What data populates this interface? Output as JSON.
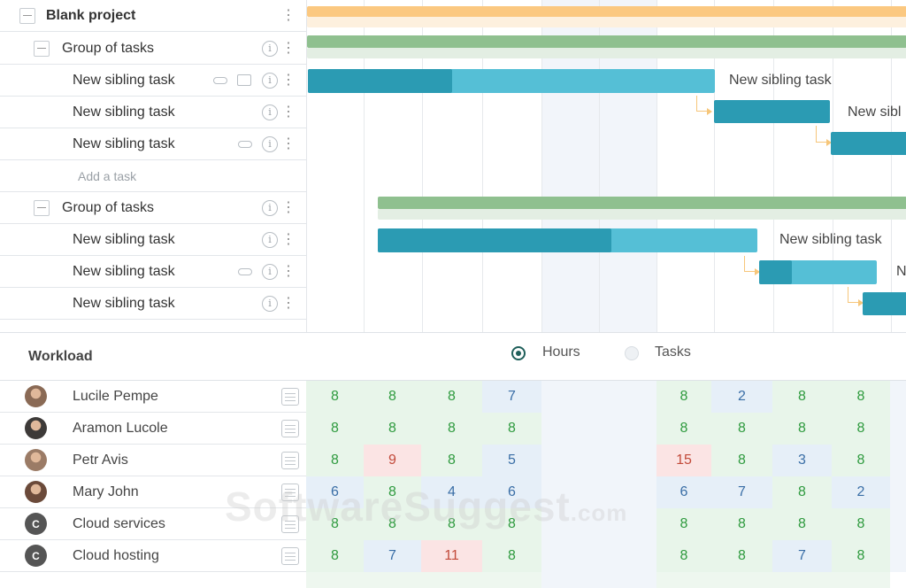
{
  "tree": {
    "project": "Blank project",
    "group1": "Group of tasks",
    "group2": "Group of tasks",
    "task_label": "New sibling task",
    "add_task": "Add a task"
  },
  "gantt": {
    "bar_labels": [
      "New sibling task",
      "New sibl",
      "New sibling task",
      "N"
    ]
  },
  "workload": {
    "title": "Workload",
    "mode_hours": "Hours",
    "mode_tasks": "Tasks",
    "selected_mode": "Hours",
    "resources": [
      {
        "name": "Lucile Pempe",
        "avatar": "photo",
        "values": [
          "8",
          "8",
          "8",
          "7",
          "",
          "",
          "8",
          "2",
          "8",
          "8"
        ]
      },
      {
        "name": "Aramon Lucole",
        "avatar": "photo",
        "values": [
          "8",
          "8",
          "8",
          "8",
          "",
          "",
          "8",
          "8",
          "8",
          "8"
        ]
      },
      {
        "name": "Petr Avis",
        "avatar": "photo",
        "values": [
          "8",
          "9",
          "8",
          "5",
          "",
          "",
          "15",
          "8",
          "3",
          "8"
        ]
      },
      {
        "name": "Mary John",
        "avatar": "photo",
        "values": [
          "6",
          "8",
          "4",
          "6",
          "",
          "",
          "6",
          "7",
          "8",
          "2"
        ]
      },
      {
        "name": "Cloud services",
        "avatar": "C",
        "values": [
          "8",
          "8",
          "8",
          "8",
          "",
          "",
          "8",
          "8",
          "8",
          "8"
        ]
      },
      {
        "name": "Cloud hosting",
        "avatar": "C",
        "values": [
          "8",
          "7",
          "11",
          "8",
          "",
          "",
          "8",
          "8",
          "7",
          "8"
        ]
      }
    ]
  },
  "colors": {
    "project_bar": "#fbc880",
    "group_bar": "#8fc08f",
    "task_dark": "#2b9bb3",
    "task_light": "#55bfd6",
    "link": "#f6c67a"
  },
  "watermark": {
    "text": "SoftwareSuggest",
    "suffix": ".com"
  }
}
